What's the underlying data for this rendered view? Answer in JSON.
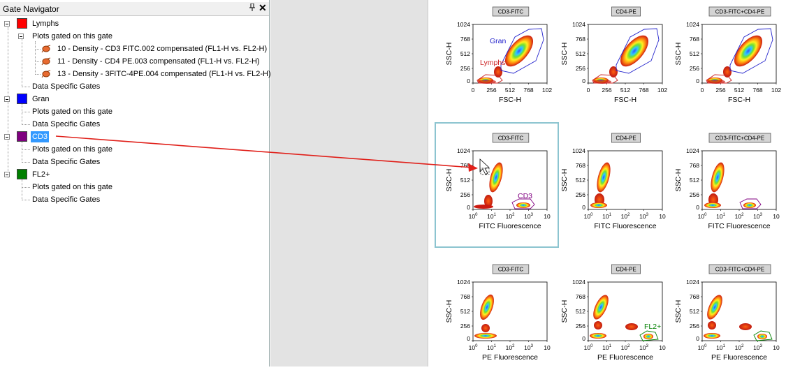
{
  "panel": {
    "title": "Gate Navigator",
    "pin_icon": "pin-icon",
    "close_icon": "close-icon"
  },
  "tree": {
    "gates": [
      {
        "name": "Lymphs",
        "color": "#ff0000"
      },
      {
        "name": "Gran",
        "color": "#0000ff"
      },
      {
        "name": "CD3",
        "color": "#800080",
        "selected": true
      },
      {
        "name": "FL2+",
        "color": "#008000"
      }
    ],
    "plots_gated_label": "Plots gated on this gate",
    "data_specific_label": "Data Specific Gates",
    "plots": [
      "10 - Density - CD3 FITC.002 compensated (FL1-H vs. FL2-H)",
      "11 - Density - CD4 PE.003 compensated (FL1-H vs. FL2-H)",
      "13 - Density - 3FITC-4PE.004 compensated (FL1-H vs. FL2-H)"
    ]
  },
  "grid": {
    "columns": [
      "CD3-FITC",
      "CD4-PE",
      "CD3-FITC+CD4-PE"
    ],
    "rows": [
      {
        "xlabel": "FSC-H",
        "ylabel": "SSC-H",
        "xticks": [
          "0",
          "256",
          "512",
          "768",
          "102"
        ],
        "yticks": [
          "1024",
          "768",
          "512",
          "256",
          "0"
        ]
      },
      {
        "xlabel": "FITC Fluorescence",
        "ylabel": "SSC-H",
        "xticks": [
          "10",
          "10",
          "10",
          "10",
          "10"
        ],
        "xexp": [
          "0",
          "1",
          "2",
          "3",
          ""
        ],
        "yticks": [
          "1024",
          "768",
          "512",
          "256",
          "0"
        ]
      },
      {
        "xlabel": "PE Fluorescence",
        "ylabel": "SSC-H",
        "xticks": [
          "10",
          "10",
          "10",
          "10",
          "10"
        ],
        "xexp": [
          "0",
          "1",
          "2",
          "3",
          ""
        ],
        "yticks": [
          "1024",
          "768",
          "512",
          "256",
          "0"
        ]
      }
    ],
    "gate_labels": {
      "gran": "Gran",
      "lymphs": "Lymphs",
      "cd3": "CD3",
      "fl2": "FL2+"
    },
    "colors": {
      "gran_gate": "#2222cc",
      "lymphs_gate": "#cc2222",
      "cd3_gate": "#800080",
      "fl2_gate": "#008000",
      "selection_border": "#8cc4d0",
      "arrow": "#e0201a"
    }
  }
}
